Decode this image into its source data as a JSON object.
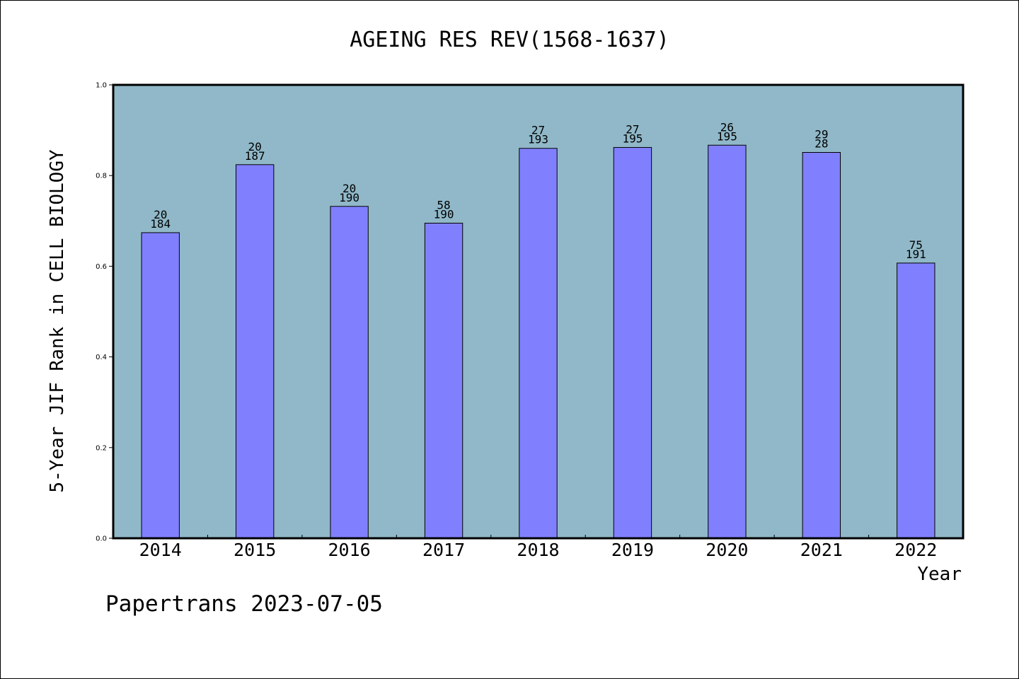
{
  "chart_data": {
    "type": "bar",
    "title": "AGEING RES REV(1568-1637)",
    "xlabel": "Year",
    "ylabel": "5-Year JIF Rank in CELL BIOLOGY",
    "categories": [
      "2014",
      "2015",
      "2016",
      "2017",
      "2018",
      "2019",
      "2020",
      "2021",
      "2022"
    ],
    "values": [
      0.674,
      0.824,
      0.732,
      0.695,
      0.86,
      0.862,
      0.867,
      0.851,
      0.607
    ],
    "rank": [
      "20",
      "20",
      "20",
      "58",
      "27",
      "27",
      "26",
      "29",
      "75"
    ],
    "total": [
      "184",
      "187",
      "190",
      "190",
      "193",
      "195",
      "195",
      "28",
      "191"
    ],
    "ylim": [
      0,
      1.0
    ],
    "yticks": [
      "0.0",
      "0.2",
      "0.4",
      "0.6",
      "0.8",
      "1.0"
    ],
    "grid": false,
    "colors": {
      "bar": "#8080ff",
      "plot_background": "#90b8c8",
      "frame": "#000000"
    }
  },
  "footer": {
    "text": "Papertrans 2023-07-05"
  }
}
